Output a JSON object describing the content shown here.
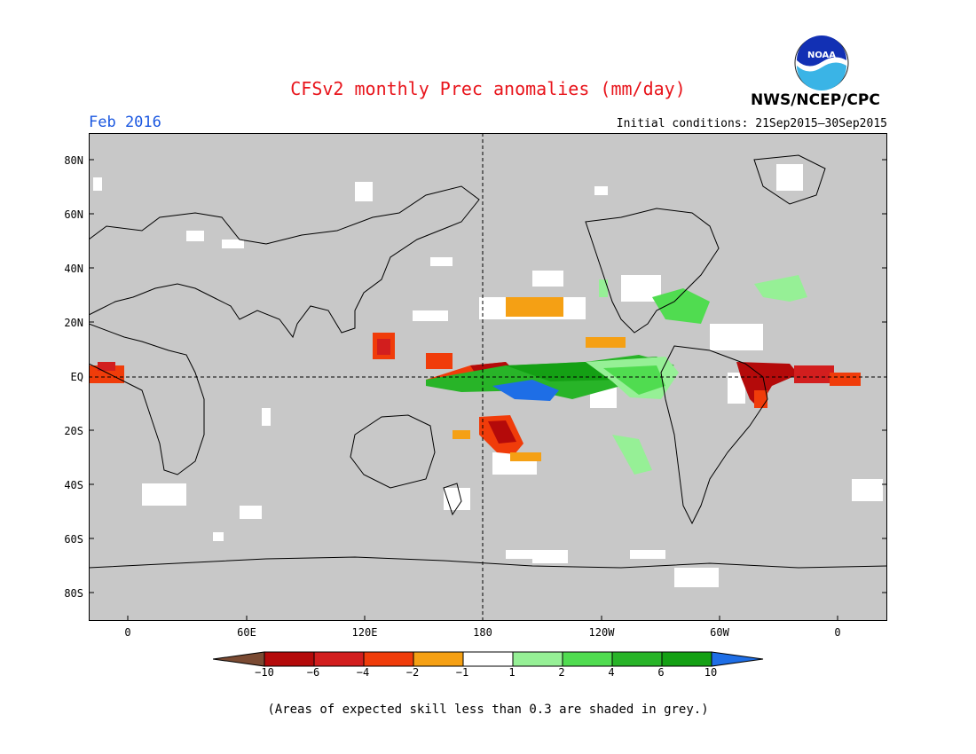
{
  "header": {
    "title": "CFSv2 monthly Prec anomalies (mm/day)",
    "month": "Feb 2016",
    "initial_conditions": "Initial conditions: 21Sep2015–30Sep2015",
    "agency": "NWS/NCEP/CPC",
    "logo_text": "NOAA"
  },
  "map": {
    "projection": "cylindrical-equidistant",
    "background_color": "#c8c8c8",
    "y_labels": [
      "80N",
      "60N",
      "40N",
      "20N",
      "EQ",
      "20S",
      "40S",
      "60S",
      "80S"
    ],
    "x_labels": [
      "0",
      "60E",
      "120E",
      "180",
      "120W",
      "60W",
      "0"
    ],
    "reference_lines": [
      "EQ",
      "180"
    ]
  },
  "colorbar": {
    "labels": [
      "−10",
      "−6",
      "−4",
      "−2",
      "−1",
      "1",
      "2",
      "4",
      "6",
      "10"
    ],
    "colors": [
      "#7a4a32",
      "#b40a0a",
      "#d21e1e",
      "#f03c0a",
      "#f5a014",
      "#ffffff",
      "#96f096",
      "#50dc50",
      "#28b428",
      "#14a014",
      "#1e6ee6"
    ]
  },
  "footnote": "(Areas of expected skill less than 0.3 are shaded in grey.)"
}
